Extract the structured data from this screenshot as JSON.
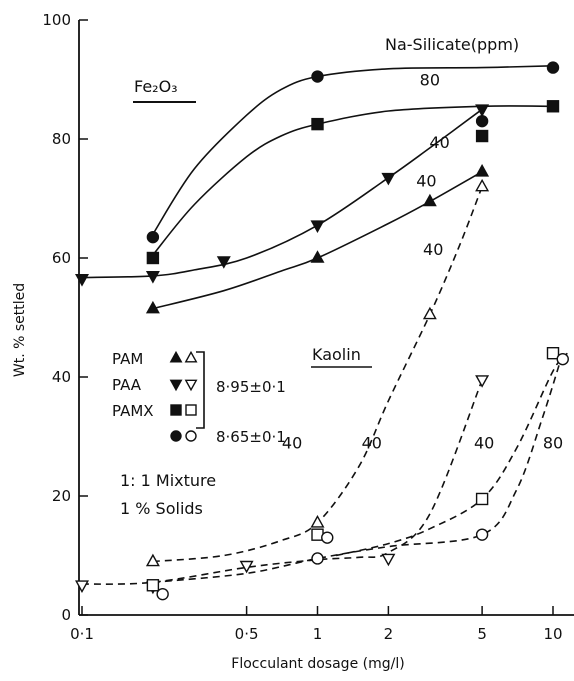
{
  "chart_data": {
    "type": "line",
    "xlabel": "Flocculant dosage (mg/l)",
    "ylabel": "Wt. % settled",
    "x_scale": "log",
    "xlim": [
      0.1,
      10
    ],
    "ylim": [
      0,
      100
    ],
    "x_ticks": [
      "0·1",
      "0·5",
      "1",
      "2",
      "5",
      "10"
    ],
    "x_tick_values": [
      0.1,
      0.5,
      1,
      2,
      5,
      10
    ],
    "y_ticks": [
      "0",
      "20",
      "40",
      "60",
      "80",
      "100"
    ],
    "y_tick_values": [
      0,
      20,
      40,
      60,
      80,
      100
    ],
    "annotations": {
      "na_silicate": "Na-Silicate(ppm)",
      "fe2o3": "Fe₂O₃",
      "kaolin": "Kaolin",
      "mixture": "1: 1 Mixture",
      "solids": "1 % Solids",
      "curve_labels": [
        {
          "text": "80",
          "x": 3.0,
          "y": 90
        },
        {
          "text": "40",
          "x": 3.3,
          "y": 79.5
        },
        {
          "text": "40",
          "x": 2.9,
          "y": 73
        },
        {
          "text": "40",
          "x": 3.1,
          "y": 61.5
        },
        {
          "text": "40",
          "x": 0.78,
          "y": 29
        },
        {
          "text": "40",
          "x": 1.7,
          "y": 29
        },
        {
          "text": "40",
          "x": 5.1,
          "y": 29
        },
        {
          "text": "80",
          "x": 10,
          "y": 29
        }
      ]
    },
    "legend": {
      "rows": [
        {
          "label": "PAM",
          "filled": "triangle-up",
          "open": "triangle-up"
        },
        {
          "label": "PAA",
          "filled": "triangle-down",
          "open": "triangle-down"
        },
        {
          "label": "PAMX",
          "filled": "square",
          "open": "square"
        },
        {
          "label": "",
          "filled": "circle",
          "open": "circle"
        }
      ],
      "ph_1": "8·95±0·1",
      "ph_2": "8·65±0·1"
    },
    "series": [
      {
        "marker": "circle",
        "filled": true,
        "style": "solid",
        "x": [
          0.2,
          1,
          5,
          10
        ],
        "y": [
          63.5,
          90.5,
          83,
          92
        ]
      },
      {
        "marker": "square",
        "filled": true,
        "style": "solid",
        "x": [
          0.2,
          1,
          5,
          10
        ],
        "y": [
          60,
          82.5,
          80.5,
          85.5
        ]
      },
      {
        "marker": "triangle-down",
        "filled": true,
        "style": "solid",
        "x": [
          0.1,
          0.2,
          0.4,
          1,
          2,
          5
        ],
        "y": [
          56.5,
          57,
          59.5,
          65.5,
          73.5,
          85
        ]
      },
      {
        "marker": "triangle-up",
        "filled": true,
        "style": "solid",
        "x": [
          0.2,
          1,
          3,
          5
        ],
        "y": [
          51.5,
          60,
          69.5,
          74.5
        ]
      },
      {
        "marker": "triangle-up",
        "filled": false,
        "style": "dashed",
        "x": [
          0.2,
          1,
          3,
          5
        ],
        "y": [
          9,
          15.5,
          50.5,
          72
        ]
      },
      {
        "marker": "triangle-down",
        "filled": false,
        "style": "dashed",
        "x": [
          0.1,
          0.2,
          0.5,
          2,
          5
        ],
        "y": [
          5,
          4.8,
          8.3,
          9.5,
          39.5
        ]
      },
      {
        "marker": "square",
        "filled": false,
        "style": "dashed",
        "x": [
          0.2,
          1,
          5,
          10
        ],
        "y": [
          5,
          13.5,
          19.5,
          44
        ]
      },
      {
        "marker": "circle",
        "filled": false,
        "style": "dashed",
        "x": [
          0.22,
          1,
          1.1,
          5,
          11
        ],
        "y": [
          3.5,
          9.5,
          13,
          13.5,
          43
        ]
      }
    ],
    "curves": [
      {
        "style": "solid",
        "x": [
          0.2,
          0.3,
          0.5,
          0.7,
          1,
          2,
          5,
          10
        ],
        "y": [
          64,
          75,
          84,
          88.3,
          90.5,
          91.8,
          92,
          92.3
        ]
      },
      {
        "style": "solid",
        "x": [
          0.2,
          0.3,
          0.5,
          0.7,
          1,
          2,
          5,
          10
        ],
        "y": [
          60.5,
          69,
          77,
          80.5,
          82.5,
          84.7,
          85.5,
          85.5
        ]
      },
      {
        "style": "solid",
        "x": [
          0.1,
          0.2,
          0.3,
          0.5,
          1,
          2,
          3,
          5
        ],
        "y": [
          56.7,
          57,
          58,
          60,
          65.5,
          73.5,
          78.5,
          85
        ]
      },
      {
        "style": "solid",
        "x": [
          0.2,
          0.4,
          0.7,
          1,
          2,
          3,
          5
        ],
        "y": [
          51.5,
          54.5,
          57.8,
          60,
          65.8,
          69.5,
          74.5
        ]
      },
      {
        "style": "dashed",
        "x": [
          0.2,
          0.4,
          0.7,
          1,
          1.5,
          2,
          3,
          4,
          5
        ],
        "y": [
          9,
          10,
          12.5,
          15.5,
          25,
          36,
          50.5,
          62,
          72
        ]
      },
      {
        "style": "dashed",
        "x": [
          0.1,
          0.2,
          0.5,
          1,
          1.5,
          2,
          3,
          5
        ],
        "y": [
          5.2,
          5.5,
          8,
          9.3,
          9.7,
          10.5,
          17,
          39.5
        ]
      },
      {
        "style": "dashed",
        "x": [
          1.2,
          2,
          3,
          5,
          7,
          10,
          11.5
        ],
        "y": [
          10,
          12,
          14.5,
          19.5,
          28,
          41,
          44
        ]
      },
      {
        "style": "dashed",
        "x": [
          0.2,
          0.5,
          1,
          2,
          5,
          7,
          9,
          11
        ],
        "y": [
          5.5,
          7,
          9.5,
          11.5,
          13.5,
          21,
          33,
          44
        ]
      }
    ]
  }
}
